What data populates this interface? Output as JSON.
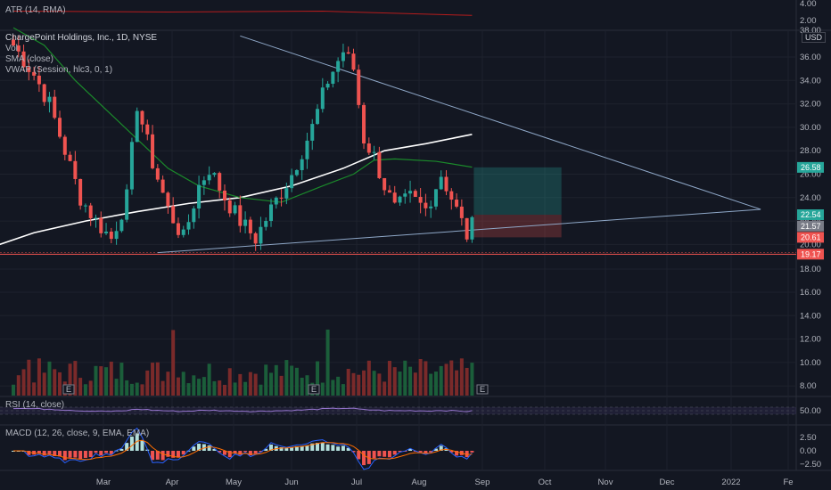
{
  "indicators": {
    "atr_label": "ATR (14, RMA)",
    "main": {
      "symbol": "ChargePoint Holdings, Inc., 1D, NYSE",
      "vol": "Vol",
      "sma": "SMA (close)",
      "vwap": "VWAP (Session, hlc3, 0, 1)"
    },
    "rsi_label": "RSI (14, close)",
    "macd_label": "MACD (12, 26, close, 9, EMA, EMA)",
    "currency": "USD",
    "earnings_marker": "E"
  },
  "colors": {
    "background": "#131722",
    "up": "#26a69a",
    "down": "#ef5350",
    "sma": "#ffffff",
    "vwap": "#1b8a2b",
    "trendline": "#8fa8c8",
    "rsi": "#9575cd",
    "macd": "#2962ff",
    "signal": "#ff6d00"
  },
  "chart_data": {
    "type": "candlestick",
    "x_ticks": [
      "Mar",
      "Apr",
      "May",
      "Jun",
      "Jul",
      "Aug",
      "Sep",
      "Oct",
      "Nov",
      "Dec",
      "2022",
      "Fe"
    ],
    "y_ticks_main": [
      "36.00",
      "34.00",
      "32.00",
      "30.00",
      "28.00",
      "26.00",
      "24.00",
      "22.00",
      "20.00",
      "18.00",
      "16.00",
      "14.00",
      "12.00",
      "10.00",
      "8.00"
    ],
    "y_ticks_atr": [
      "4.00",
      "2.00"
    ],
    "y_ticks_rsi": [
      "50.00"
    ],
    "y_ticks_macd": [
      "2.50",
      "0.00",
      "−2.50"
    ],
    "price_tags": [
      {
        "label": "26.58",
        "value": 26.58,
        "color": "#26a69a"
      },
      {
        "label": "22.54",
        "value": 22.54,
        "color": "#26a69a"
      },
      {
        "label": "21.57",
        "value": 21.57,
        "color": "#787b86"
      },
      {
        "label": "20.61",
        "value": 20.61,
        "color": "#ef5350"
      },
      {
        "label": "19.17",
        "value": 19.17,
        "color": "#ef5350"
      }
    ],
    "partial_tick_labels": [
      "22.00",
      "38.00"
    ],
    "earnings_markers": [
      "Mar",
      "Jun",
      "Sep"
    ],
    "price_path": [
      [
        0,
        37.0
      ],
      [
        4,
        34.5
      ],
      [
        7,
        32.0
      ],
      [
        10,
        28.0
      ],
      [
        13,
        24.0
      ],
      [
        16,
        22.0
      ],
      [
        19,
        20.5
      ],
      [
        22,
        24.0
      ],
      [
        24,
        32.0
      ],
      [
        27,
        27.0
      ],
      [
        30,
        23.0
      ],
      [
        33,
        20.5
      ],
      [
        36,
        25.0
      ],
      [
        38,
        26.5
      ],
      [
        41,
        24.0
      ],
      [
        44,
        22.0
      ],
      [
        47,
        20.5
      ],
      [
        50,
        23.0
      ],
      [
        54,
        26.0
      ],
      [
        58,
        30.0
      ],
      [
        61,
        34.0
      ],
      [
        64,
        36.5
      ],
      [
        66,
        35.0
      ],
      [
        68,
        29.0
      ],
      [
        70,
        27.5
      ],
      [
        72,
        25.0
      ],
      [
        74,
        23.0
      ],
      [
        77,
        24.0
      ],
      [
        80,
        23.0
      ],
      [
        83,
        26.0
      ],
      [
        85,
        24.0
      ],
      [
        88,
        20.8
      ],
      [
        89,
        21.6
      ]
    ],
    "sma_path": [
      [
        -26,
        15.5
      ],
      [
        -16,
        17.5
      ],
      [
        -6,
        19.5
      ],
      [
        4,
        21.0
      ],
      [
        14,
        22.0
      ],
      [
        24,
        22.8
      ],
      [
        34,
        23.5
      ],
      [
        44,
        24.0
      ],
      [
        54,
        25.0
      ],
      [
        64,
        26.5
      ],
      [
        72,
        28.0
      ],
      [
        80,
        28.6
      ],
      [
        89,
        29.4
      ]
    ],
    "vwap_path": [
      [
        0,
        38.5
      ],
      [
        6,
        37.0
      ],
      [
        12,
        34.0
      ],
      [
        18,
        31.5
      ],
      [
        24,
        29.0
      ],
      [
        30,
        26.5
      ],
      [
        36,
        25.0
      ],
      [
        44,
        24.0
      ],
      [
        52,
        23.6
      ],
      [
        60,
        25.0
      ],
      [
        66,
        26.0
      ],
      [
        70,
        27.2
      ],
      [
        74,
        27.3
      ],
      [
        82,
        27.1
      ],
      [
        89,
        26.6
      ]
    ],
    "trendlines": [
      {
        "from": [
          44,
          37.8
        ],
        "to": [
          145,
          23.0
        ]
      },
      {
        "from": [
          28,
          19.3
        ],
        "to": [
          145,
          23.0
        ]
      }
    ],
    "position_box": {
      "x_start": 89,
      "x_end": 106,
      "entry": 22.54,
      "target": 26.58,
      "stop": 20.61
    },
    "horizontal_line": 19.17,
    "atr_path": [
      [
        0,
        3.1
      ],
      [
        30,
        3.0
      ],
      [
        60,
        3.1
      ],
      [
        89,
        2.6
      ]
    ],
    "rsi_band": [
      30,
      70
    ],
    "macd_zero": 0.0
  }
}
